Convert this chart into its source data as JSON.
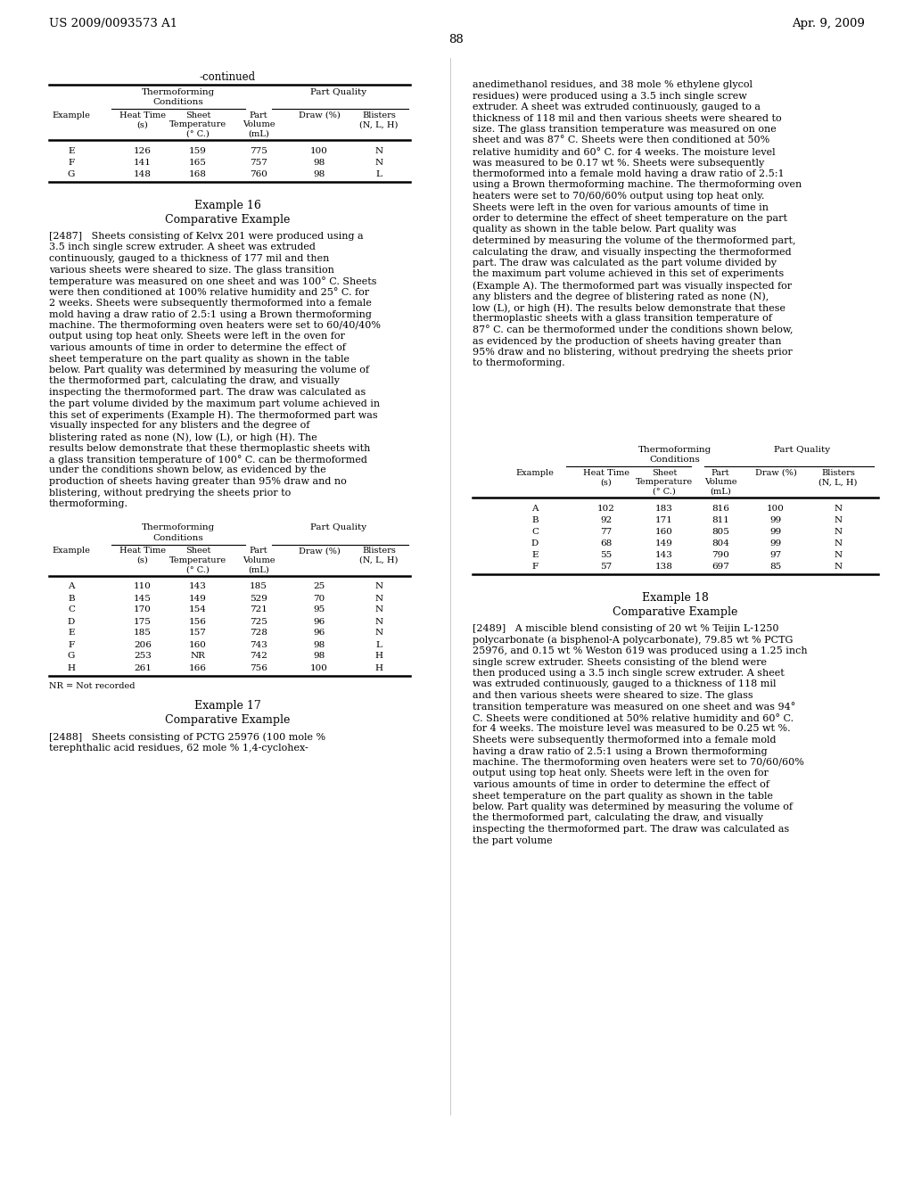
{
  "bg_color": "#ffffff",
  "header_left": "US 2009/0093573 A1",
  "header_right": "Apr. 9, 2009",
  "page_number": "88",
  "table1_title": "-continued",
  "table1_headers": [
    "",
    "Thermoforming\nConditions",
    "",
    "Part Quality",
    ""
  ],
  "table1_col_headers": [
    "Example",
    "Heat Time\n(s)",
    "Sheet\nTemperature\n(° C.)",
    "Part\nVolume\n(mL)",
    "Draw (%)",
    "Blisters\n(N, L, H)"
  ],
  "table1_data": [
    [
      "E",
      "126",
      "159",
      "775",
      "100",
      "N"
    ],
    [
      "F",
      "141",
      "165",
      "757",
      "98",
      "N"
    ],
    [
      "G",
      "148",
      "168",
      "760",
      "98",
      "L"
    ]
  ],
  "example16_heading": "Example 16",
  "example16_sub": "Comparative Example",
  "para2487": "[2487]   Sheets consisting of Kelvx 201 were produced using a 3.5 inch single screw extruder. A sheet was extruded continuously, gauged to a thickness of 177 mil and then various sheets were sheared to size. The glass transition temperature was measured on one sheet and was 100° C. Sheets were then conditioned at 100% relative humidity and 25° C. for 2 weeks. Sheets were subsequently thermoformed into a female mold having a draw ratio of 2.5:1 using a Brown thermoforming machine. The thermoforming oven heaters were set to 60/40/40% output using top heat only. Sheets were left in the oven for various amounts of time in order to determine the effect of sheet temperature on the part quality as shown in the table below. Part quality was determined by measuring the volume of the thermoformed part, calculating the draw, and visually inspecting the thermoformed part. The draw was calculated as the part volume divided by the maximum part volume achieved in this set of experiments (Example H). The thermoformed part was visually inspected for any blisters and the degree of blistering rated as none (N), low (L), or high (H). The results below demonstrate that these thermoplastic sheets with a glass transition temperature of 100° C. can be thermoformed under the conditions shown below, as evidenced by the production of sheets having greater than 95% draw and no blistering, without predrying the sheets prior to thermoforming.",
  "table2_col_headers": [
    "Example",
    "Heat Time\n(s)",
    "Sheet\nTemperature\n(° C.)",
    "Part\nVolume\n(mL)",
    "Draw (%)",
    "Blisters\n(N, L, H)"
  ],
  "table2_data": [
    [
      "A",
      "110",
      "143",
      "185",
      "25",
      "N"
    ],
    [
      "B",
      "145",
      "149",
      "529",
      "70",
      "N"
    ],
    [
      "C",
      "170",
      "154",
      "721",
      "95",
      "N"
    ],
    [
      "D",
      "175",
      "156",
      "725",
      "96",
      "N"
    ],
    [
      "E",
      "185",
      "157",
      "728",
      "96",
      "N"
    ],
    [
      "F",
      "206",
      "160",
      "743",
      "98",
      "L"
    ],
    [
      "G",
      "253",
      "NR",
      "742",
      "98",
      "H"
    ],
    [
      "H",
      "261",
      "166",
      "756",
      "100",
      "H"
    ]
  ],
  "table2_footnote": "NR = Not recorded",
  "example17_heading": "Example 17",
  "example17_sub": "Comparative Example",
  "para2488": "[2488]   Sheets consisting of PCTG 25976 (100 mole % terephthalic acid residues, 62 mole % 1,4-cyclohex-",
  "right_para_top": "anedimethanol residues, and 38 mole % ethylene glycol residues) were produced using a 3.5 inch single screw extruder. A sheet was extruded continuously, gauged to a thickness of 118 mil and then various sheets were sheared to size. The glass transition temperature was measured on one sheet and was 87° C. Sheets were then conditioned at 50% relative humidity and 60° C. for 4 weeks. The moisture level was measured to be 0.17 wt %. Sheets were subsequently thermoformed into a female mold having a draw ratio of 2.5:1 using a Brown thermoforming machine. The thermoforming oven heaters were set to 70/60/60% output using top heat only. Sheets were left in the oven for various amounts of time in order to determine the effect of sheet temperature on the part quality as shown in the table below. Part quality was determined by measuring the volume of the thermoformed part, calculating the draw, and visually inspecting the thermoformed part. The draw was calculated as the part volume divided by the maximum part volume achieved in this set of experiments (Example A). The thermoformed part was visually inspected for any blisters and the degree of blistering rated as none (N), low (L), or high (H). The results below demonstrate that these thermoplastic sheets with a glass transition temperature of 87° C. can be thermoformed under the conditions shown below, as evidenced by the production of sheets having greater than 95% draw and no blistering, without predrying the sheets prior to thermoforming.",
  "table3_col_headers": [
    "Example",
    "Heat Time\n(s)",
    "Sheet\nTemperature\n(° C.)",
    "Part\nVolume\n(mL)",
    "Draw (%)",
    "Blisters\n(N, L, H)"
  ],
  "table3_data": [
    [
      "A",
      "102",
      "183",
      "816",
      "100",
      "N"
    ],
    [
      "B",
      "92",
      "171",
      "811",
      "99",
      "N"
    ],
    [
      "C",
      "77",
      "160",
      "805",
      "99",
      "N"
    ],
    [
      "D",
      "68",
      "149",
      "804",
      "99",
      "N"
    ],
    [
      "E",
      "55",
      "143",
      "790",
      "97",
      "N"
    ],
    [
      "F",
      "57",
      "138",
      "697",
      "85",
      "N"
    ]
  ],
  "example18_heading": "Example 18",
  "example18_sub": "Comparative Example",
  "para2489": "[2489]   A miscible blend consisting of 20 wt % Teijin L-1250 polycarbonate (a bisphenol-A polycarbonate), 79.85 wt % PCTG 25976, and 0.15 wt % Weston 619 was produced using a 1.25 inch single screw extruder. Sheets consisting of the blend were then produced using a 3.5 inch single screw extruder. A sheet was extruded continuously, gauged to a thickness of 118 mil and then various sheets were sheared to size. The glass transition temperature was measured on one sheet and was 94° C. Sheets were conditioned at 50% relative humidity and 60° C. for 4 weeks. The moisture level was measured to be 0.25 wt %. Sheets were subsequently thermoformed into a female mold having a draw ratio of 2.5:1 using a Brown thermoforming machine. The thermoforming oven heaters were set to 70/60/60% output using top heat only. Sheets were left in the oven for various amounts of time in order to determine the effect of sheet temperature on the part quality as shown in the table below. Part quality was determined by measuring the volume of the thermoformed part, calculating the draw, and visually inspecting the thermoformed part. The draw was calculated as the part volume"
}
